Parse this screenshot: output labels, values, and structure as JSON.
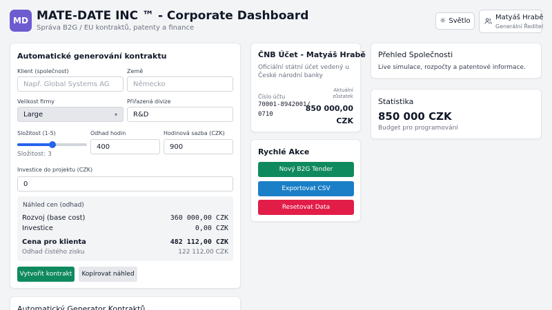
{
  "header": {
    "logo": "MD",
    "title": "MATE-DATE INC ™ - Corporate Dashboard",
    "subtitle": "Správa B2G / EU kontraktů, patenty a finance",
    "theme_button": "Světlo",
    "user_name": "Matyáš Hrabě",
    "user_role": "Generální Ředitel"
  },
  "contract_form": {
    "title": "Automatické generování kontraktu",
    "client_label": "Klient (společnost)",
    "client_placeholder": "Např. Global Systems AG",
    "country_label": "Země",
    "country_placeholder": "Německo",
    "size_label": "Velikost firmy",
    "size_value": "Large",
    "division_label": "Přiřazená divize",
    "division_value": "R&D",
    "complexity_label": "Složitost (1-5)",
    "complexity_value": 3,
    "complexity_min": 1,
    "complexity_max": 5,
    "complexity_text": "Složitost: 3",
    "hours_label": "Odhad hodin",
    "hours_value": "400",
    "rate_label": "Hodinová sazba (CZK)",
    "rate_value": "900",
    "investment_label": "Investice do projektu (CZK)",
    "investment_value": "0",
    "preview": {
      "title": "Náhled cen (odhad)",
      "dev_label": "Rozvoj (base cost)",
      "dev_value": "360 000,00 CZK",
      "invest_label": "Investice",
      "invest_value": "0,00 CZK",
      "client_price_label": "Cena pro klienta",
      "client_price_value": "482 112,00 CZK",
      "profit_label": "Odhad čistého zisku",
      "profit_value": "122 112,00 CZK"
    },
    "create_button": "Vytvořit kontrakt",
    "copy_button": "Kopírovat náhled"
  },
  "generator_card": {
    "title": "Automatický Generator Kontraktů"
  },
  "cnb": {
    "title": "ČNB Účet - Matyáš Hrabě",
    "description": "Oficiální státní účet vedený u České národní banky",
    "account_label": "Číslo účtu",
    "account_number": "70001-8942001/0710",
    "balance_label": "Aktuální zůstatek",
    "balance_value": "850 000,00 CZK"
  },
  "quick_actions": {
    "title": "Rychlé Akce",
    "new_tender": "Nový B2G Tender",
    "export_csv": "Exportovat CSV",
    "reset_data": "Resetovat Data"
  },
  "overview": {
    "title": "Přehled Společnosti",
    "description": "Live simulace, rozpočty a patentové informace."
  },
  "stats": {
    "title": "Statistika",
    "value": "850 000 CZK",
    "caption": "Budget pro programování"
  },
  "colors": {
    "logo": "#6d5bd0",
    "primary_green": "#0f8a5f",
    "action_blue": "#1a7fc7",
    "danger_red": "#e11d48",
    "slider": "#2563eb"
  },
  "icons": {
    "theme": "sun-icon",
    "user": "user-group-icon"
  }
}
